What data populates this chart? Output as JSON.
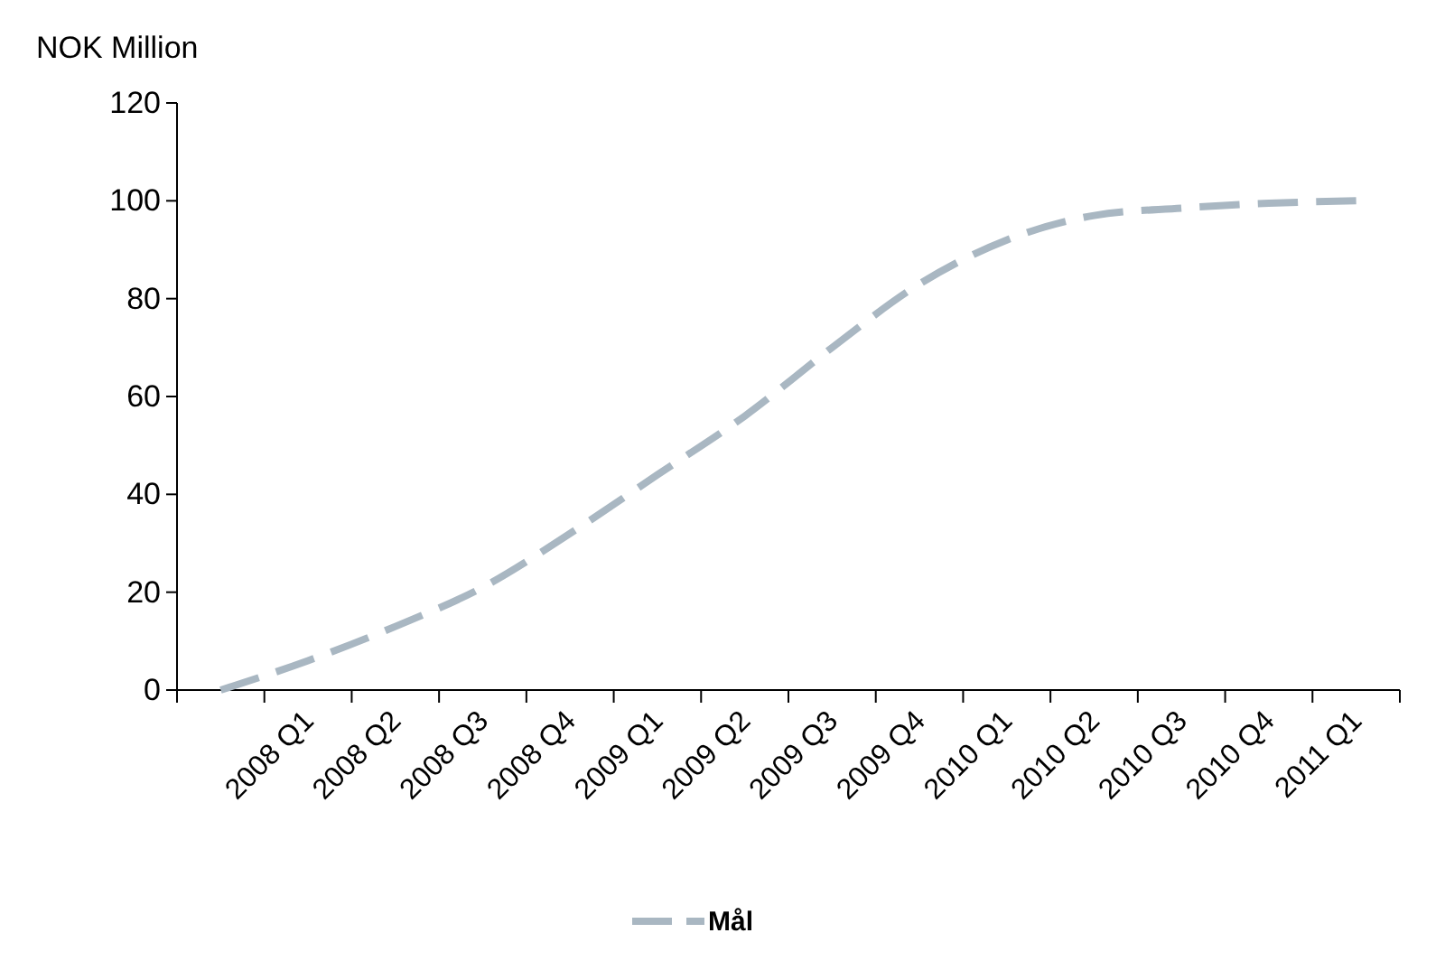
{
  "chart_data": {
    "type": "line",
    "ylabel": "NOK Million",
    "categories": [
      null,
      "2008 Q1",
      "2008 Q2",
      "2008 Q3",
      "2008 Q4",
      "2009 Q1",
      "2009 Q2",
      "2009 Q3",
      "2009 Q4",
      "2010 Q1",
      "2010 Q2",
      "2010 Q3",
      "2010 Q4",
      "2011 Q1"
    ],
    "series": [
      {
        "name": "Mål",
        "color": "#a9b7c2",
        "values": [
          0,
          6,
          13,
          21,
          32,
          44,
          56,
          70,
          83,
          92,
          97,
          98.5,
          99.5,
          100
        ]
      }
    ],
    "ylim": [
      0,
      120
    ],
    "yticks": [
      0,
      20,
      40,
      60,
      80,
      100,
      120
    ],
    "grid": false,
    "legend": "bottom",
    "line_style": "dashed",
    "marker": "none"
  }
}
